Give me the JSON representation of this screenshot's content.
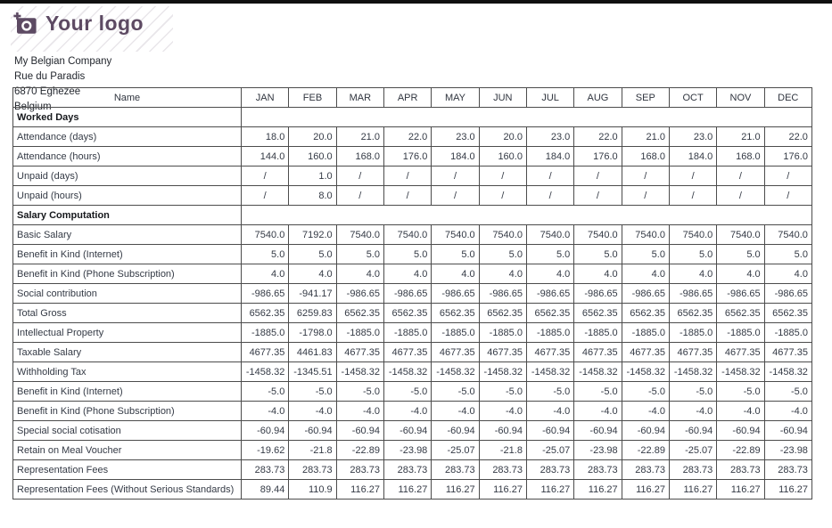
{
  "page": {
    "background": "#ffffff",
    "top_bar_color": "#101010"
  },
  "logo": {
    "text": "Your logo",
    "color": "#5d4a63",
    "icon": "camera-plus-icon"
  },
  "company": {
    "name": "My Belgian Company",
    "street": "Rue du Paradis",
    "city": "6870 Eghezee",
    "country": "Belgium"
  },
  "table": {
    "name_header": "Name",
    "months": [
      "JAN",
      "FEB",
      "MAR",
      "APR",
      "MAY",
      "JUN",
      "JUL",
      "AUG",
      "SEP",
      "OCT",
      "NOV",
      "DEC"
    ],
    "rows": [
      {
        "type": "section",
        "label": "Worked Days"
      },
      {
        "type": "data",
        "label": "Attendance (days)",
        "values": [
          "18.0",
          "20.0",
          "21.0",
          "22.0",
          "23.0",
          "20.0",
          "23.0",
          "22.0",
          "21.0",
          "23.0",
          "21.0",
          "22.0"
        ]
      },
      {
        "type": "data",
        "label": "Attendance (hours)",
        "values": [
          "144.0",
          "160.0",
          "168.0",
          "176.0",
          "184.0",
          "160.0",
          "184.0",
          "176.0",
          "168.0",
          "184.0",
          "168.0",
          "176.0"
        ]
      },
      {
        "type": "data",
        "label": "Unpaid (days)",
        "values": [
          "/",
          "1.0",
          "/",
          "/",
          "/",
          "/",
          "/",
          "/",
          "/",
          "/",
          "/",
          "/"
        ]
      },
      {
        "type": "data",
        "label": "Unpaid (hours)",
        "values": [
          "/",
          "8.0",
          "/",
          "/",
          "/",
          "/",
          "/",
          "/",
          "/",
          "/",
          "/",
          "/"
        ]
      },
      {
        "type": "section",
        "label": "Salary Computation"
      },
      {
        "type": "data",
        "label": "Basic Salary",
        "values": [
          "7540.0",
          "7192.0",
          "7540.0",
          "7540.0",
          "7540.0",
          "7540.0",
          "7540.0",
          "7540.0",
          "7540.0",
          "7540.0",
          "7540.0",
          "7540.0"
        ]
      },
      {
        "type": "data",
        "label": "Benefit in Kind (Internet)",
        "values": [
          "5.0",
          "5.0",
          "5.0",
          "5.0",
          "5.0",
          "5.0",
          "5.0",
          "5.0",
          "5.0",
          "5.0",
          "5.0",
          "5.0"
        ]
      },
      {
        "type": "data",
        "label": "Benefit in Kind (Phone Subscription)",
        "values": [
          "4.0",
          "4.0",
          "4.0",
          "4.0",
          "4.0",
          "4.0",
          "4.0",
          "4.0",
          "4.0",
          "4.0",
          "4.0",
          "4.0"
        ]
      },
      {
        "type": "data",
        "label": "Social contribution",
        "values": [
          "-986.65",
          "-941.17",
          "-986.65",
          "-986.65",
          "-986.65",
          "-986.65",
          "-986.65",
          "-986.65",
          "-986.65",
          "-986.65",
          "-986.65",
          "-986.65"
        ]
      },
      {
        "type": "data",
        "label": "Total Gross",
        "values": [
          "6562.35",
          "6259.83",
          "6562.35",
          "6562.35",
          "6562.35",
          "6562.35",
          "6562.35",
          "6562.35",
          "6562.35",
          "6562.35",
          "6562.35",
          "6562.35"
        ]
      },
      {
        "type": "data",
        "label": "Intellectual Property",
        "values": [
          "-1885.0",
          "-1798.0",
          "-1885.0",
          "-1885.0",
          "-1885.0",
          "-1885.0",
          "-1885.0",
          "-1885.0",
          "-1885.0",
          "-1885.0",
          "-1885.0",
          "-1885.0"
        ]
      },
      {
        "type": "data",
        "label": "Taxable Salary",
        "values": [
          "4677.35",
          "4461.83",
          "4677.35",
          "4677.35",
          "4677.35",
          "4677.35",
          "4677.35",
          "4677.35",
          "4677.35",
          "4677.35",
          "4677.35",
          "4677.35"
        ]
      },
      {
        "type": "data",
        "label": "Withholding Tax",
        "values": [
          "-1458.32",
          "-1345.51",
          "-1458.32",
          "-1458.32",
          "-1458.32",
          "-1458.32",
          "-1458.32",
          "-1458.32",
          "-1458.32",
          "-1458.32",
          "-1458.32",
          "-1458.32"
        ]
      },
      {
        "type": "data",
        "label": "Benefit in Kind (Internet)",
        "values": [
          "-5.0",
          "-5.0",
          "-5.0",
          "-5.0",
          "-5.0",
          "-5.0",
          "-5.0",
          "-5.0",
          "-5.0",
          "-5.0",
          "-5.0",
          "-5.0"
        ]
      },
      {
        "type": "data",
        "label": "Benefit in Kind (Phone Subscription)",
        "values": [
          "-4.0",
          "-4.0",
          "-4.0",
          "-4.0",
          "-4.0",
          "-4.0",
          "-4.0",
          "-4.0",
          "-4.0",
          "-4.0",
          "-4.0",
          "-4.0"
        ]
      },
      {
        "type": "data",
        "label": "Special social cotisation",
        "values": [
          "-60.94",
          "-60.94",
          "-60.94",
          "-60.94",
          "-60.94",
          "-60.94",
          "-60.94",
          "-60.94",
          "-60.94",
          "-60.94",
          "-60.94",
          "-60.94"
        ]
      },
      {
        "type": "data",
        "label": "Retain on Meal Voucher",
        "values": [
          "-19.62",
          "-21.8",
          "-22.89",
          "-23.98",
          "-25.07",
          "-21.8",
          "-25.07",
          "-23.98",
          "-22.89",
          "-25.07",
          "-22.89",
          "-23.98"
        ]
      },
      {
        "type": "data",
        "label": "Representation Fees",
        "values": [
          "283.73",
          "283.73",
          "283.73",
          "283.73",
          "283.73",
          "283.73",
          "283.73",
          "283.73",
          "283.73",
          "283.73",
          "283.73",
          "283.73"
        ]
      },
      {
        "type": "data",
        "label": "Representation Fees (Without Serious Standards)",
        "values": [
          "89.44",
          "110.9",
          "116.27",
          "116.27",
          "116.27",
          "116.27",
          "116.27",
          "116.27",
          "116.27",
          "116.27",
          "116.27",
          "116.27"
        ]
      }
    ]
  }
}
